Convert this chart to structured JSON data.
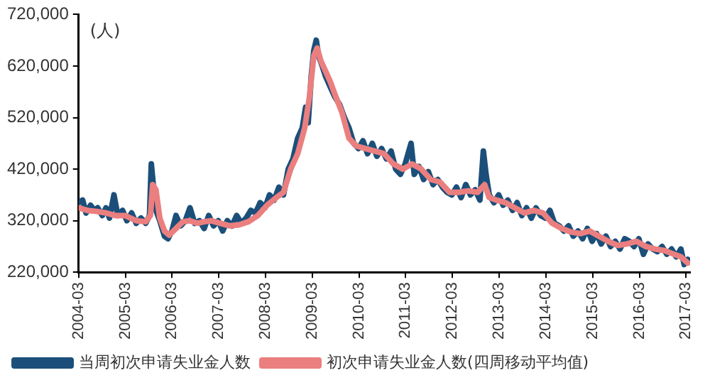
{
  "chart_data": {
    "type": "line",
    "ylabel": "(人)",
    "legend": "bottom",
    "grid": false,
    "marker": "none",
    "line_style": "solid",
    "xlim": [
      "2004-03",
      "2017-04"
    ],
    "xticks": [
      "2004-03",
      "2005-03",
      "2006-03",
      "2007-03",
      "2008-03",
      "2009-03",
      "2010-03",
      "2011-03",
      "2012-03",
      "2013-03",
      "2014-03",
      "2015-03",
      "2016-03",
      "2017-03"
    ],
    "ylim": [
      220000,
      720000
    ],
    "yticks": [
      {
        "value": 220000,
        "label": "220,000"
      },
      {
        "value": 320000,
        "label": "320,000"
      },
      {
        "value": 420000,
        "label": "420,000"
      },
      {
        "value": 520000,
        "label": "520,000"
      },
      {
        "value": 620000,
        "label": "620,000"
      },
      {
        "value": 720000,
        "label": "720,000"
      }
    ],
    "series": [
      {
        "name": "当周初次申请失业金人数",
        "color": "#1b4f7a",
        "x": [
          "2004-03-02",
          "2004-04-01",
          "2004-04-28",
          "2004-06-02",
          "2004-07-01",
          "2004-07-28",
          "2004-09-02",
          "2004-10-01",
          "2004-10-28",
          "2004-12-02",
          "2005-01-01",
          "2005-02-07",
          "2005-03-13",
          "2005-04-19",
          "2005-05-25",
          "2005-07-01",
          "2005-08-07",
          "2005-09-06",
          "2005-09-20",
          "2005-10-05",
          "2005-10-26",
          "2005-11-25",
          "2006-01-01",
          "2006-01-28",
          "2006-02-28",
          "2006-04-01",
          "2006-05-07",
          "2006-06-13",
          "2006-07-19",
          "2006-08-25",
          "2006-10-01",
          "2006-11-07",
          "2006-12-13",
          "2007-01-19",
          "2007-02-25",
          "2007-04-01",
          "2007-05-07",
          "2007-06-13",
          "2007-07-19",
          "2007-08-25",
          "2007-10-01",
          "2007-11-07",
          "2007-12-13",
          "2008-01-19",
          "2008-02-25",
          "2008-04-01",
          "2008-05-07",
          "2008-06-13",
          "2008-07-19",
          "2008-08-25",
          "2008-10-01",
          "2008-11-07",
          "2008-12-13",
          "2009-01-08",
          "2009-01-28",
          "2009-02-21",
          "2009-03-13",
          "2009-04-01",
          "2009-04-19",
          "2009-05-18",
          "2009-06-13",
          "2009-07-19",
          "2009-08-25",
          "2009-10-01",
          "2009-11-07",
          "2009-12-13",
          "2010-01-19",
          "2010-02-25",
          "2010-04-01",
          "2010-05-07",
          "2010-06-13",
          "2010-07-19",
          "2010-08-25",
          "2010-10-01",
          "2010-11-07",
          "2010-12-13",
          "2011-01-19",
          "2011-02-25",
          "2011-04-12",
          "2011-05-07",
          "2011-06-13",
          "2011-07-19",
          "2011-08-25",
          "2011-10-01",
          "2011-11-07",
          "2011-12-13",
          "2012-01-19",
          "2012-02-25",
          "2012-04-01",
          "2012-05-07",
          "2012-06-13",
          "2012-07-19",
          "2012-08-25",
          "2012-10-01",
          "2012-10-28",
          "2012-11-18",
          "2012-12-13",
          "2013-01-19",
          "2013-02-25",
          "2013-04-01",
          "2013-05-07",
          "2013-06-13",
          "2013-07-19",
          "2013-08-25",
          "2013-10-01",
          "2013-11-07",
          "2013-12-13",
          "2014-01-19",
          "2014-02-25",
          "2014-04-01",
          "2014-05-07",
          "2014-06-13",
          "2014-07-19",
          "2014-08-25",
          "2014-10-01",
          "2014-11-07",
          "2014-12-13",
          "2015-01-19",
          "2015-02-25",
          "2015-04-01",
          "2015-05-07",
          "2015-06-13",
          "2015-07-19",
          "2015-08-25",
          "2015-10-01",
          "2015-11-07",
          "2015-12-13",
          "2016-01-19",
          "2016-02-25",
          "2016-04-01",
          "2016-05-07",
          "2016-06-13",
          "2016-07-19",
          "2016-08-25",
          "2016-10-01",
          "2016-11-07",
          "2016-12-13",
          "2017-01-19",
          "2017-02-14",
          "2017-03-13"
        ],
        "values": [
          355000,
          360000,
          335000,
          350000,
          340000,
          345000,
          330000,
          345000,
          325000,
          370000,
          330000,
          340000,
          320000,
          335000,
          315000,
          325000,
          315000,
          330000,
          430000,
          390000,
          340000,
          320000,
          290000,
          285000,
          300000,
          330000,
          310000,
          320000,
          345000,
          315000,
          320000,
          305000,
          330000,
          310000,
          320000,
          300000,
          320000,
          310000,
          330000,
          315000,
          325000,
          340000,
          335000,
          355000,
          345000,
          370000,
          360000,
          385000,
          370000,
          420000,
          440000,
          480000,
          500000,
          540000,
          510000,
          600000,
          650000,
          670000,
          640000,
          620000,
          600000,
          580000,
          560000,
          545000,
          520000,
          500000,
          470000,
          460000,
          475000,
          450000,
          470000,
          445000,
          460000,
          440000,
          455000,
          420000,
          410000,
          430000,
          470000,
          410000,
          425000,
          400000,
          415000,
          390000,
          400000,
          385000,
          375000,
          370000,
          385000,
          365000,
          390000,
          370000,
          380000,
          360000,
          455000,
          410000,
          370000,
          355000,
          370000,
          350000,
          360000,
          340000,
          355000,
          330000,
          345000,
          325000,
          345000,
          330000,
          325000,
          340000,
          315000,
          310000,
          300000,
          310000,
          290000,
          300000,
          285000,
          305000,
          280000,
          295000,
          275000,
          290000,
          270000,
          280000,
          265000,
          285000,
          280000,
          270000,
          285000,
          255000,
          275000,
          265000,
          260000,
          270000,
          255000,
          265000,
          250000,
          265000,
          235000,
          245000
        ]
      },
      {
        "name": "初次申请失业金人数(四周移动平均值)",
        "color": "#eb7f7f",
        "x": [
          "2004-03-02",
          "2004-05-07",
          "2004-07-19",
          "2004-10-01",
          "2004-12-13",
          "2005-02-25",
          "2005-05-25",
          "2005-08-07",
          "2005-09-13",
          "2005-10-01",
          "2005-10-26",
          "2005-11-25",
          "2006-01-01",
          "2006-02-07",
          "2006-04-01",
          "2006-05-25",
          "2006-07-19",
          "2006-09-13",
          "2006-11-07",
          "2007-01-01",
          "2007-03-13",
          "2007-05-25",
          "2007-08-07",
          "2007-10-19",
          "2008-01-01",
          "2008-03-13",
          "2008-05-25",
          "2008-07-19",
          "2008-09-13",
          "2008-11-07",
          "2009-01-01",
          "2009-02-07",
          "2009-03-13",
          "2009-04-08",
          "2009-05-07",
          "2009-06-13",
          "2009-07-19",
          "2009-08-25",
          "2009-10-19",
          "2009-12-13",
          "2010-02-07",
          "2010-04-19",
          "2010-07-01",
          "2010-09-13",
          "2010-11-25",
          "2011-02-07",
          "2011-04-19",
          "2011-07-01",
          "2011-09-13",
          "2011-11-25",
          "2012-02-07",
          "2012-04-19",
          "2012-07-01",
          "2012-09-13",
          "2012-11-07",
          "2012-12-13",
          "2013-02-07",
          "2013-04-19",
          "2013-07-01",
          "2013-09-13",
          "2013-11-25",
          "2014-02-07",
          "2014-04-19",
          "2014-07-01",
          "2014-09-13",
          "2014-11-25",
          "2015-02-07",
          "2015-04-19",
          "2015-07-01",
          "2015-09-13",
          "2015-11-25",
          "2016-02-07",
          "2016-04-19",
          "2016-07-01",
          "2016-09-13",
          "2016-11-25",
          "2017-01-19",
          "2017-03-13"
        ],
        "values": [
          345000,
          340000,
          338000,
          335000,
          330000,
          330000,
          320000,
          318000,
          330000,
          390000,
          380000,
          325000,
          300000,
          292000,
          305000,
          318000,
          320000,
          315000,
          318000,
          320000,
          315000,
          310000,
          312000,
          318000,
          330000,
          350000,
          365000,
          375000,
          420000,
          450000,
          500000,
          560000,
          640000,
          655000,
          630000,
          610000,
          590000,
          565000,
          530000,
          480000,
          465000,
          460000,
          455000,
          450000,
          430000,
          420000,
          430000,
          420000,
          400000,
          395000,
          375000,
          375000,
          378000,
          375000,
          390000,
          365000,
          360000,
          355000,
          345000,
          335000,
          340000,
          335000,
          315000,
          305000,
          298000,
          295000,
          300000,
          290000,
          280000,
          272000,
          275000,
          280000,
          270000,
          265000,
          262000,
          255000,
          250000,
          238000
        ]
      }
    ]
  }
}
